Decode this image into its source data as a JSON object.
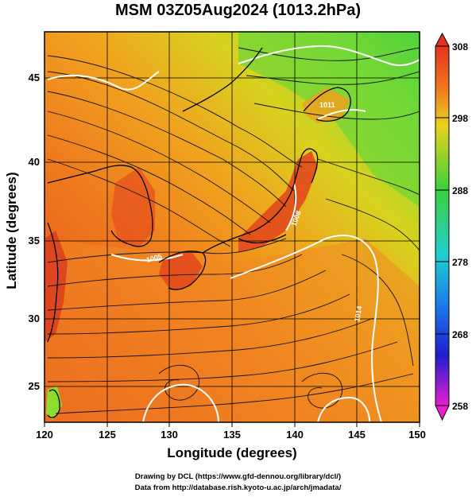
{
  "title": "MSM 03Z05Aug2024 (1013.2hPa)",
  "x_axis": {
    "label": "Longitude (degrees)",
    "ticks": [
      "120",
      "125",
      "130",
      "135",
      "140",
      "145",
      "150"
    ]
  },
  "y_axis": {
    "label": "Latitude  (degrees)",
    "ticks": [
      "25",
      "30",
      "35",
      "40",
      "45"
    ]
  },
  "colorbar": {
    "ticks": [
      "308",
      "298",
      "288",
      "278",
      "268",
      "258"
    ],
    "min": 258,
    "max": 308
  },
  "contour_labels": [
    "1005",
    "1008",
    "1011",
    "1014"
  ],
  "credits": {
    "line1": "Drawing by DCL (https://www.gfd-dennou.org/library/dcl/)",
    "line2": "Data from http://database.rish.kyoto-u.ac.jp/arch/jmadata/"
  },
  "colors": {
    "hot": "#e8481e",
    "warm": "#f08a1e",
    "mid": "#e8d21e",
    "cool": "#3ecf3e",
    "isobar": "#ffffff"
  }
}
